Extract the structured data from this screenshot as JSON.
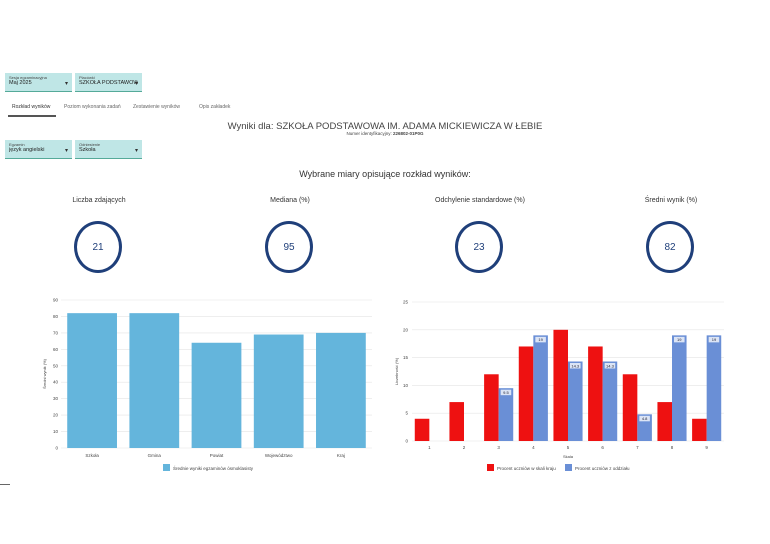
{
  "filters": {
    "session": {
      "label": "Sesja egzaminacyjna",
      "value": "Maj 2025"
    },
    "school": {
      "label": "Placówki",
      "value": "SZKOŁA PODSTAWOWA..."
    },
    "exam": {
      "label": "Egzamin",
      "value": "język angielski"
    },
    "level": {
      "label": "Odniesienie",
      "value": "Szkoła"
    }
  },
  "tabs": [
    {
      "label": "Rozkład wyników"
    },
    {
      "label": "Poziom wykonania zadań"
    },
    {
      "label": "Zestawienie wyników"
    },
    {
      "label": "Opis zakładek"
    }
  ],
  "header": {
    "title": "Wyniki dla: SZKOŁA PODSTAWOWA IM. ADAMA MICKIEWICZA W ŁEBIE",
    "id_label": "Numer identyfikacyjny:",
    "id_value": "226802-01P0G"
  },
  "measures_title": "Wybrane miary opisujące rozkład wyników:",
  "stats": [
    {
      "label": "Liczba zdających",
      "value": "21"
    },
    {
      "label": "Mediana (%)",
      "value": "95"
    },
    {
      "label": "Odchylenie standardowe (%)",
      "value": "23"
    },
    {
      "label": "Średni wynik (%)",
      "value": "82"
    }
  ],
  "chart_data": [
    {
      "type": "bar",
      "categories": [
        "Szkoła",
        "Gmina",
        "Powiat",
        "Województwo",
        "Kraj"
      ],
      "values": [
        82,
        82,
        64,
        69,
        70
      ],
      "ylabel": "Średni wynik (%)",
      "ylim": [
        0,
        90
      ],
      "yticks": [
        "0",
        "10",
        "20",
        "30",
        "40",
        "50",
        "60",
        "70",
        "80",
        "90"
      ],
      "series": [
        {
          "name": "Średnie wyniki egzaminów ósmoklasisty",
          "color": "#64b5dc"
        }
      ]
    },
    {
      "type": "bar",
      "categories": [
        "1",
        "2",
        "3",
        "4",
        "5",
        "6",
        "7",
        "8",
        "9"
      ],
      "xlabel": "Skala",
      "ylabel": "Liczebność (%)",
      "ylim": [
        0,
        25
      ],
      "yticks": [
        "0",
        "5",
        "10",
        "15",
        "20",
        "25"
      ],
      "series": [
        {
          "name": "Procent uczniów w skali kraju",
          "color": "#ee1111",
          "values": [
            4,
            7,
            12,
            17,
            20,
            17,
            12,
            7,
            4
          ]
        },
        {
          "name": "Procent uczniów z oddziału",
          "color": "#6a8fd6",
          "values": [
            0,
            0,
            9.5,
            19,
            14.3,
            14.3,
            4.8,
            19,
            19
          ],
          "labels": [
            "",
            "",
            "9.5",
            "19",
            "14.3",
            "14.3",
            "4.8",
            "19",
            "19"
          ]
        }
      ]
    }
  ]
}
